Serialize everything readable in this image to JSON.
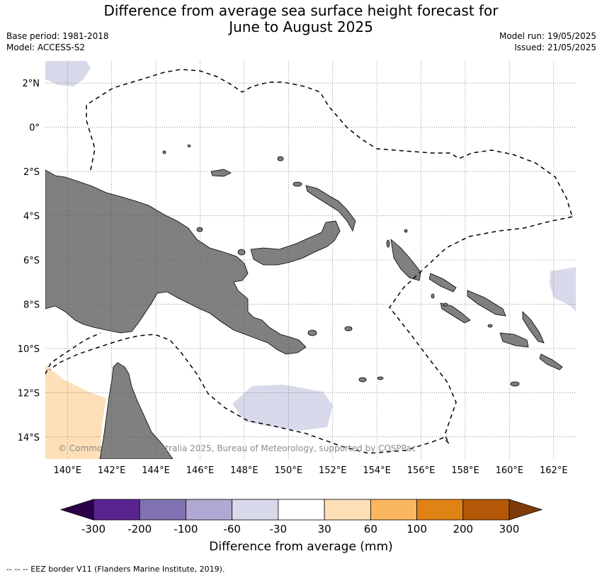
{
  "header": {
    "title_line1": "Difference from average sea surface height forecast for",
    "title_line2": "June to August 2025",
    "base_period": "Base period: 1981-2018",
    "model": "Model: ACCESS-S2",
    "model_run": "Model run: 19/05/2025",
    "issued": "Issued: 21/05/2025"
  },
  "map": {
    "lon_ticks": [
      "140°E",
      "142°E",
      "144°E",
      "146°E",
      "148°E",
      "150°E",
      "152°E",
      "154°E",
      "156°E",
      "158°E",
      "160°E",
      "162°E"
    ],
    "lat_ticks": [
      "2°N",
      "0°",
      "2°S",
      "4°S",
      "6°S",
      "8°S",
      "10°S",
      "12°S",
      "14°S"
    ],
    "copyright": "© Commonwealth of Australia 2025, Bureau of Meteorology, supported by COSPPac",
    "colors": {
      "land": "#808080",
      "anomaly_neg_light": "#d8d9ea",
      "anomaly_pos_light": "#fde0b8",
      "eez_line": "#000000",
      "grid": "#555555"
    }
  },
  "colorbar": {
    "title": "Difference from average (mm)",
    "labels": [
      "-300",
      "-200",
      "-100",
      "-60",
      "-30",
      "30",
      "60",
      "100",
      "200",
      "300"
    ],
    "colors": [
      "#5a2490",
      "#8072b0",
      "#b0a8d2",
      "#d8d9ea",
      "#ffffff",
      "#fde0b8",
      "#fbb760",
      "#e08214",
      "#b35806"
    ],
    "extend_low": "#2d004b",
    "extend_high": "#7f3b08"
  },
  "footer": {
    "eez_legend": "--  --  -- EEZ border V11 (Flanders Marine Institute, 2019)."
  }
}
